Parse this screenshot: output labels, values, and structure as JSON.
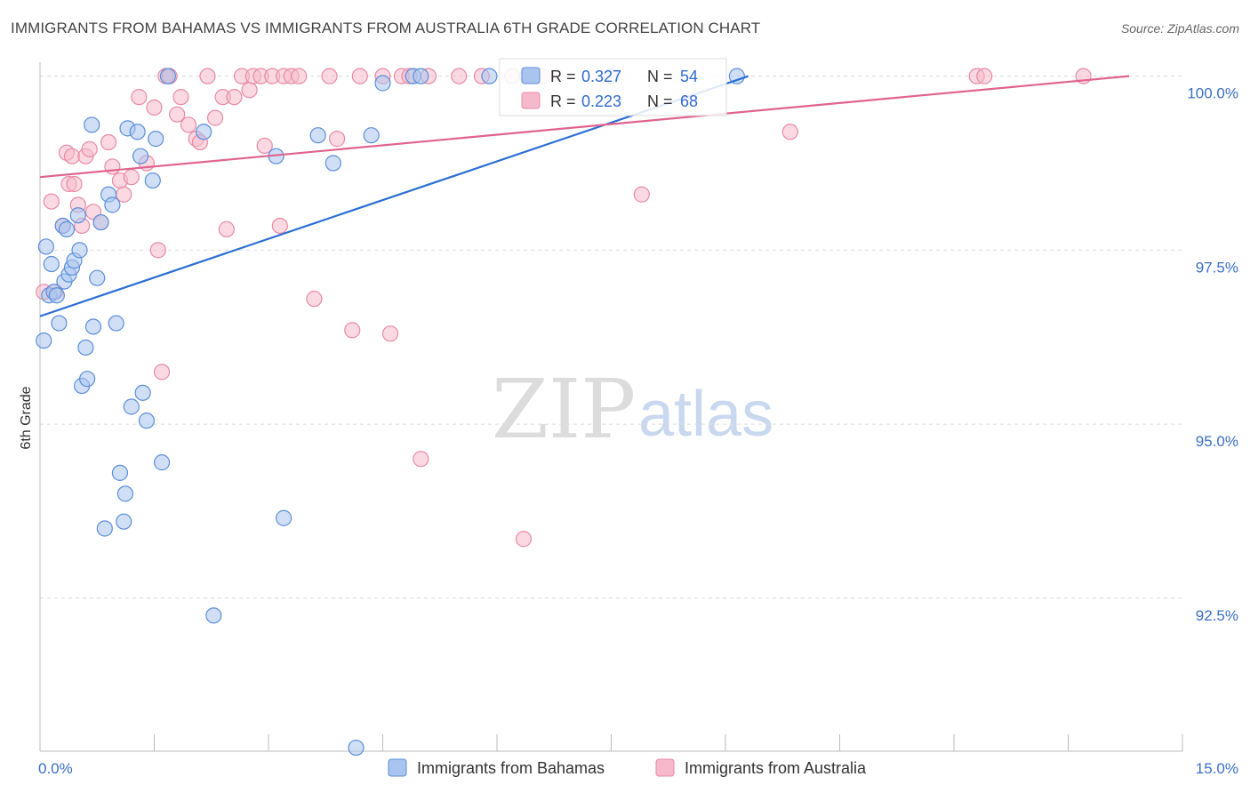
{
  "header": {
    "title": "IMMIGRANTS FROM BAHAMAS VS IMMIGRANTS FROM AUSTRALIA 6TH GRADE CORRELATION CHART",
    "source": "Source: ZipAtlas.com"
  },
  "watermark": {
    "zip": "ZIP",
    "atlas": "atlas"
  },
  "legend": {
    "rows": [
      {
        "r_label": "R = ",
        "r_value": "0.327",
        "n_label": "N = ",
        "n_value": "54"
      },
      {
        "r_label": "R = ",
        "r_value": "0.223",
        "n_label": "N = ",
        "n_value": "68"
      }
    ]
  },
  "bottom_legend": [
    {
      "label": "Immigrants from Bahamas"
    },
    {
      "label": "Immigrants from Australia"
    }
  ],
  "colors": {
    "bahamas_fill": "#a9c4ee",
    "bahamas_stroke": "#5b8fd8",
    "bahamas_line": "#2b6fd4",
    "australia_fill": "#f6b9cb",
    "australia_stroke": "#e88aa6",
    "australia_line": "#e0638f",
    "grid": "#dddddd",
    "tick_text": "#3a6fc4"
  },
  "chart_data": {
    "type": "scatter",
    "title": "IMMIGRANTS FROM BAHAMAS VS IMMIGRANTS FROM AUSTRALIA 6TH GRADE CORRELATION CHART",
    "xlabel": "",
    "ylabel": "6th Grade",
    "xlim": [
      0,
      15
    ],
    "ylim": [
      90.3,
      100.2
    ],
    "x_tick_labels": [
      "0.0%",
      "15.0%"
    ],
    "y_ticks": [
      92.5,
      95.0,
      97.5,
      100.0
    ],
    "y_tick_labels": [
      "92.5%",
      "95.0%",
      "97.5%",
      "100.0%"
    ],
    "grid": true,
    "legend_position": "top-center",
    "series": [
      {
        "name": "Immigrants from Bahamas",
        "r": 0.327,
        "n": 54,
        "trend": [
          [
            0.0,
            96.55
          ],
          [
            9.3,
            100.0
          ]
        ],
        "points": [
          [
            0.05,
            96.2
          ],
          [
            0.08,
            97.55
          ],
          [
            0.12,
            96.85
          ],
          [
            0.15,
            97.3
          ],
          [
            0.18,
            96.9
          ],
          [
            0.22,
            96.85
          ],
          [
            0.25,
            96.45
          ],
          [
            0.3,
            97.85
          ],
          [
            0.32,
            97.05
          ],
          [
            0.35,
            97.8
          ],
          [
            0.38,
            97.15
          ],
          [
            0.42,
            97.25
          ],
          [
            0.45,
            97.35
          ],
          [
            0.5,
            98.0
          ],
          [
            0.52,
            97.5
          ],
          [
            0.55,
            95.55
          ],
          [
            0.6,
            96.1
          ],
          [
            0.62,
            95.65
          ],
          [
            0.68,
            99.3
          ],
          [
            0.7,
            96.4
          ],
          [
            0.75,
            97.1
          ],
          [
            0.8,
            97.9
          ],
          [
            0.85,
            93.5
          ],
          [
            0.9,
            98.3
          ],
          [
            0.95,
            98.15
          ],
          [
            1.0,
            96.45
          ],
          [
            1.05,
            94.3
          ],
          [
            1.1,
            93.6
          ],
          [
            1.12,
            94.0
          ],
          [
            1.15,
            99.25
          ],
          [
            1.2,
            95.25
          ],
          [
            1.28,
            99.2
          ],
          [
            1.32,
            98.85
          ],
          [
            1.35,
            95.45
          ],
          [
            1.4,
            95.05
          ],
          [
            1.48,
            98.5
          ],
          [
            1.52,
            99.1
          ],
          [
            1.6,
            94.45
          ],
          [
            1.68,
            100.0
          ],
          [
            2.15,
            99.2
          ],
          [
            2.28,
            92.25
          ],
          [
            3.1,
            98.85
          ],
          [
            3.2,
            93.65
          ],
          [
            3.65,
            99.15
          ],
          [
            3.85,
            98.75
          ],
          [
            4.15,
            90.35
          ],
          [
            4.35,
            99.15
          ],
          [
            4.5,
            99.9
          ],
          [
            4.9,
            100.0
          ],
          [
            5.0,
            100.0
          ],
          [
            5.9,
            100.0
          ],
          [
            6.4,
            100.0
          ],
          [
            7.5,
            100.0
          ],
          [
            9.15,
            100.0
          ]
        ]
      },
      {
        "name": "Immigrants from Australia",
        "r": 0.223,
        "n": 68,
        "trend": [
          [
            0.0,
            98.55
          ],
          [
            14.3,
            100.0
          ]
        ],
        "points": [
          [
            0.05,
            96.9
          ],
          [
            0.15,
            98.2
          ],
          [
            0.2,
            96.9
          ],
          [
            0.3,
            97.85
          ],
          [
            0.35,
            98.9
          ],
          [
            0.38,
            98.45
          ],
          [
            0.42,
            98.85
          ],
          [
            0.45,
            98.45
          ],
          [
            0.5,
            98.15
          ],
          [
            0.55,
            97.85
          ],
          [
            0.6,
            98.85
          ],
          [
            0.65,
            98.95
          ],
          [
            0.7,
            98.05
          ],
          [
            0.8,
            97.9
          ],
          [
            0.9,
            99.05
          ],
          [
            0.95,
            98.7
          ],
          [
            1.05,
            98.5
          ],
          [
            1.1,
            98.3
          ],
          [
            1.2,
            98.55
          ],
          [
            1.3,
            99.7
          ],
          [
            1.4,
            98.75
          ],
          [
            1.5,
            99.55
          ],
          [
            1.55,
            97.5
          ],
          [
            1.6,
            95.75
          ],
          [
            1.65,
            100.0
          ],
          [
            1.7,
            100.0
          ],
          [
            1.8,
            99.45
          ],
          [
            1.85,
            99.7
          ],
          [
            1.95,
            99.3
          ],
          [
            2.05,
            99.1
          ],
          [
            2.1,
            99.05
          ],
          [
            2.2,
            100.0
          ],
          [
            2.3,
            99.4
          ],
          [
            2.4,
            99.7
          ],
          [
            2.45,
            97.8
          ],
          [
            2.55,
            99.7
          ],
          [
            2.65,
            100.0
          ],
          [
            2.75,
            99.8
          ],
          [
            2.8,
            100.0
          ],
          [
            2.9,
            100.0
          ],
          [
            2.95,
            99.0
          ],
          [
            3.05,
            100.0
          ],
          [
            3.15,
            97.85
          ],
          [
            3.2,
            100.0
          ],
          [
            3.3,
            100.0
          ],
          [
            3.4,
            100.0
          ],
          [
            3.6,
            96.8
          ],
          [
            3.8,
            100.0
          ],
          [
            3.9,
            99.1
          ],
          [
            4.1,
            96.35
          ],
          [
            4.2,
            100.0
          ],
          [
            4.5,
            100.0
          ],
          [
            4.6,
            96.3
          ],
          [
            4.75,
            100.0
          ],
          [
            4.85,
            100.0
          ],
          [
            5.0,
            94.5
          ],
          [
            5.1,
            100.0
          ],
          [
            5.5,
            100.0
          ],
          [
            5.8,
            100.0
          ],
          [
            6.2,
            100.0
          ],
          [
            6.35,
            93.35
          ],
          [
            6.45,
            100.0
          ],
          [
            6.6,
            100.0
          ],
          [
            7.9,
            98.3
          ],
          [
            9.85,
            99.2
          ],
          [
            12.3,
            100.0
          ],
          [
            12.4,
            100.0
          ],
          [
            13.7,
            100.0
          ]
        ]
      }
    ]
  }
}
